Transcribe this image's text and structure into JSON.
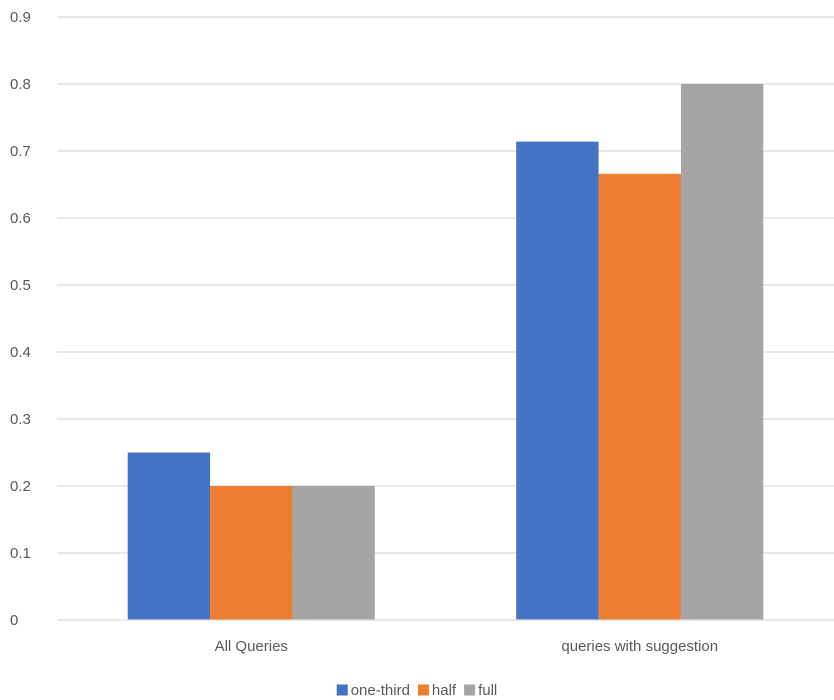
{
  "chart_data": {
    "type": "bar",
    "title": "",
    "xlabel": "",
    "ylabel": "",
    "categories": [
      "All Queries",
      "queries with suggestion"
    ],
    "series": [
      {
        "name": "one-third",
        "color": "#4472c4",
        "values": [
          0.25,
          0.714
        ]
      },
      {
        "name": "half",
        "color": "#ed7d31",
        "values": [
          0.2,
          0.666
        ]
      },
      {
        "name": "full",
        "color": "#a5a5a5",
        "values": [
          0.2,
          0.8
        ]
      }
    ],
    "ylim": [
      0,
      0.9
    ],
    "yticks": [
      "0",
      "0.1",
      "0.2",
      "0.3",
      "0.4",
      "0.5",
      "0.6",
      "0.7",
      "0.8",
      "0.9"
    ],
    "grid": true,
    "gridColor": "#d9d9d9",
    "legend": "bottom-center"
  }
}
